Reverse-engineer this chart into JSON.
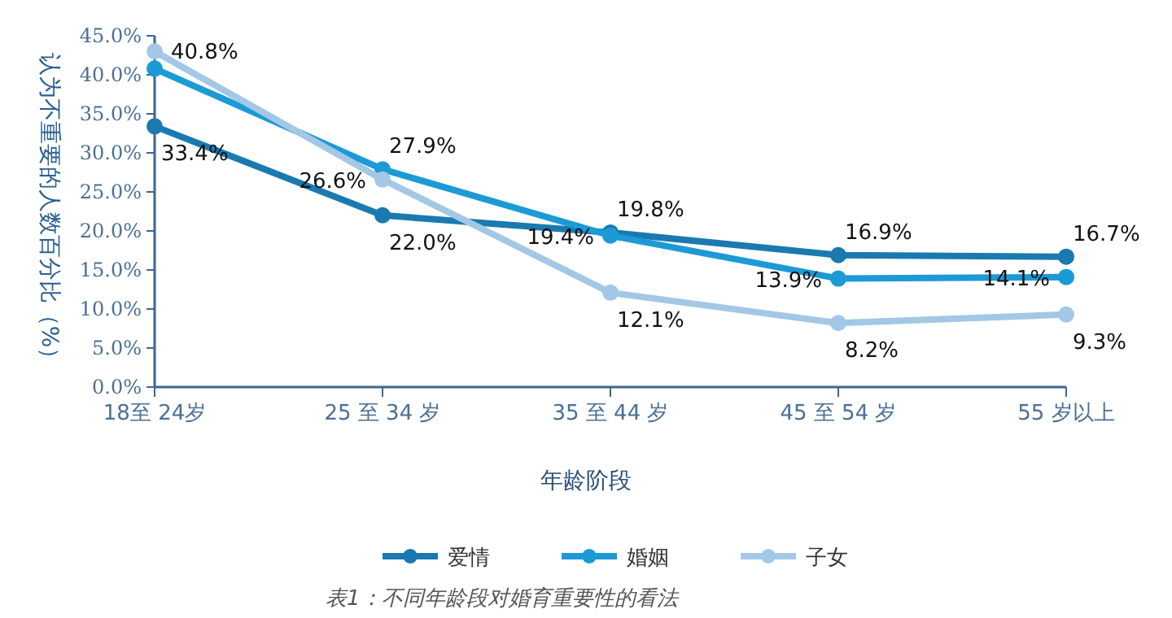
{
  "chart_data": {
    "type": "line",
    "xlabel": "年龄阶段",
    "ylabel": "认为不重要的人数百分比（%）",
    "categories": [
      "18至 24岁",
      "25 至 34 岁",
      "35 至 44 岁",
      "45 至 54 岁",
      "55 岁以上"
    ],
    "series": [
      {
        "name": "爱情",
        "color": "#1a7ab0",
        "values": [
          33.4,
          22.0,
          19.8,
          16.9,
          16.7
        ],
        "value_labels": [
          "33.4%",
          "22.0%",
          "19.8%",
          "16.9%",
          "16.7%"
        ]
      },
      {
        "name": "婚姻",
        "color": "#1c9ad6",
        "values": [
          40.8,
          27.9,
          19.4,
          13.9,
          14.1
        ],
        "value_labels": [
          "40.8%",
          "27.9%",
          "19.4%",
          "13.9%",
          "14.1%"
        ]
      },
      {
        "name": "子女",
        "color": "#a3c8e6",
        "values": [
          43.0,
          26.6,
          12.1,
          8.2,
          9.3
        ],
        "value_labels": [
          null,
          "26.6%",
          "12.1%",
          "8.2%",
          "9.3%"
        ]
      }
    ],
    "ylim": [
      0,
      45
    ],
    "yticks": [
      {
        "value": 0,
        "label": "0.0%"
      },
      {
        "value": 5,
        "label": "5.0%"
      },
      {
        "value": 10,
        "label": "10.0%"
      },
      {
        "value": 15,
        "label": "15.0%"
      },
      {
        "value": 20,
        "label": "20.0%"
      },
      {
        "value": 25,
        "label": "25.0%"
      },
      {
        "value": 30,
        "label": "30.0%"
      },
      {
        "value": 35,
        "label": "35.0%"
      },
      {
        "value": 40,
        "label": "40.0%"
      },
      {
        "value": 45,
        "label": "45.0%"
      }
    ],
    "marker": "circle",
    "legend": "bottom",
    "grid": false,
    "annotations": [
      "表1：不同年龄段对婚育重要性的看法"
    ]
  }
}
